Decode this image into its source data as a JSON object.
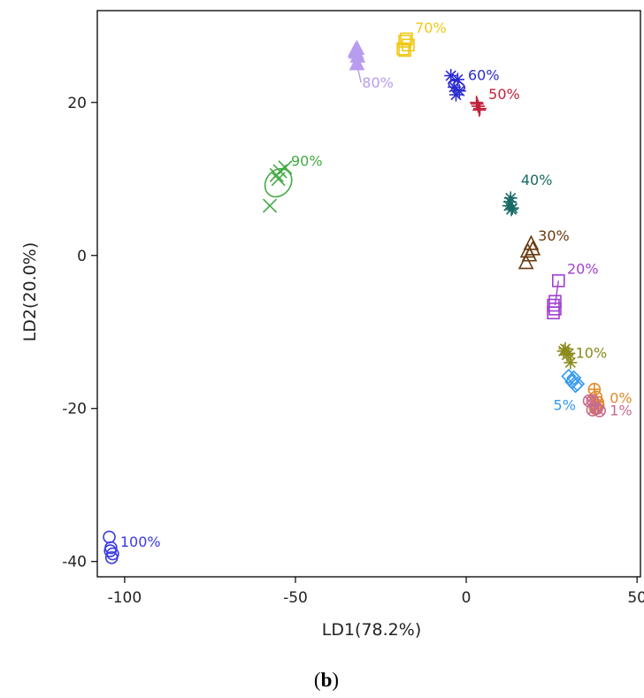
{
  "chart_data": {
    "type": "scatter",
    "panel_label": {
      "open": "(",
      "letter": "b",
      "close": ")"
    },
    "xlabel": "LD1(78.2%)",
    "ylabel": "LD2(20.0%)",
    "xlim": [
      -108,
      51
    ],
    "ylim": [
      -42,
      32
    ],
    "xticks": [
      {
        "value": -100,
        "label": "-100"
      },
      {
        "value": -50,
        "label": "-50"
      },
      {
        "value": 0,
        "label": "0"
      },
      {
        "value": 50,
        "label": "50"
      }
    ],
    "yticks": [
      {
        "value": -40,
        "label": "-40"
      },
      {
        "value": -20,
        "label": "-20"
      },
      {
        "value": 0,
        "label": "0"
      },
      {
        "value": 20,
        "label": "20"
      }
    ],
    "grid": false,
    "series": [
      {
        "name": "0%",
        "marker": "circle-plus",
        "color": "#e08a2a",
        "points": [
          [
            37.5,
            -17.5
          ],
          [
            38,
            -18.5
          ],
          [
            38.5,
            -19.2
          ],
          [
            37.8,
            -20
          ],
          [
            38.6,
            -19.6
          ]
        ],
        "label_at": [
          42,
          -18.7
        ]
      },
      {
        "name": "1%",
        "marker": "circle-cross",
        "color": "#c96a8e",
        "points": [
          [
            36,
            -19
          ],
          [
            37,
            -20.2
          ],
          [
            38.2,
            -20
          ],
          [
            37,
            -19
          ],
          [
            39,
            -20.3
          ]
        ],
        "label_at": [
          42,
          -20.3
        ]
      },
      {
        "name": "5%",
        "marker": "diamond",
        "color": "#3399ee",
        "points": [
          [
            30,
            -15.8
          ],
          [
            31,
            -16.5
          ],
          [
            32,
            -17
          ],
          [
            31.5,
            -16
          ],
          [
            32.5,
            -16.8
          ]
        ],
        "label_at": [
          25.5,
          -19.6
        ]
      },
      {
        "name": "10%",
        "marker": "star",
        "color": "#8a8a1a",
        "points": [
          [
            28.5,
            -12.5
          ],
          [
            29.5,
            -13
          ],
          [
            30,
            -12.8
          ],
          [
            30.5,
            -14
          ],
          [
            29,
            -12.2
          ]
        ],
        "label_at": [
          32,
          -12.8
        ]
      },
      {
        "name": "20%",
        "marker": "square",
        "color": "#a040d0",
        "points": [
          [
            27,
            -3.3
          ],
          [
            25.5,
            -6.5
          ],
          [
            26,
            -7
          ],
          [
            25.5,
            -7.5
          ],
          [
            26,
            -6
          ]
        ],
        "label_at": [
          29.5,
          -1.8
        ]
      },
      {
        "name": "30%",
        "marker": "triangle",
        "color": "#6b3a10",
        "points": [
          [
            17.5,
            -1
          ],
          [
            18,
            0.5
          ],
          [
            19,
            1.5
          ],
          [
            18.5,
            0
          ],
          [
            19.5,
            0.8
          ]
        ],
        "label_at": [
          21,
          2.5
        ]
      },
      {
        "name": "40%",
        "marker": "star",
        "color": "#1a6a64",
        "points": [
          [
            13,
            7.5
          ],
          [
            12.5,
            6.5
          ],
          [
            13.5,
            6.2
          ],
          [
            12.8,
            7
          ],
          [
            13.2,
            6
          ]
        ],
        "label_at": [
          16,
          9.8
        ]
      },
      {
        "name": "50%",
        "marker": "plus",
        "color": "#c0223a",
        "points": [
          [
            3,
            20
          ],
          [
            3.5,
            19.5
          ],
          [
            3.8,
            19
          ],
          [
            3.2,
            19.8
          ],
          [
            4,
            19.2
          ]
        ],
        "label_at": [
          6.5,
          21
        ]
      },
      {
        "name": "60%",
        "marker": "star",
        "color": "#2a2ad0",
        "points": [
          [
            -4.5,
            23.5
          ],
          [
            -2.5,
            23
          ],
          [
            -3.5,
            22
          ],
          [
            -2,
            21.5
          ],
          [
            -3,
            21
          ]
        ],
        "label_at": [
          0.5,
          23.5
        ]
      },
      {
        "name": "70%",
        "marker": "square",
        "color": "#f0c814",
        "points": [
          [
            -18,
            28
          ],
          [
            -17,
            27.5
          ],
          [
            -18.5,
            27
          ],
          [
            -17.5,
            28.3
          ],
          [
            -18,
            26.8
          ]
        ],
        "label_at": [
          -15,
          29.7
        ]
      },
      {
        "name": "80%",
        "marker": "triangle-filled",
        "color": "#b89cf0",
        "points": [
          [
            -32,
            27
          ],
          [
            -32.2,
            26.5
          ],
          [
            -31.8,
            26
          ],
          [
            -32.5,
            26.7
          ],
          [
            -32,
            25
          ]
        ],
        "label_at": [
          -30.5,
          22.5
        ]
      },
      {
        "name": "90%",
        "marker": "cross",
        "color": "#44aa44",
        "points": [
          [
            -57.5,
            6.5
          ],
          [
            -55.5,
            10.5
          ],
          [
            -54.5,
            11
          ],
          [
            -53,
            11.5
          ],
          [
            -55,
            10
          ]
        ],
        "label_at": [
          -51.3,
          12.3
        ]
      },
      {
        "name": "100%",
        "marker": "circle",
        "color": "#3a3ae0",
        "points": [
          [
            -104.5,
            -36.8
          ],
          [
            -104,
            -38.2
          ],
          [
            -103.5,
            -39
          ],
          [
            -103.8,
            -39.5
          ],
          [
            -104.2,
            -38.6
          ]
        ],
        "label_at": [
          -101.3,
          -37.5
        ]
      }
    ],
    "ellipses": [
      {
        "series": "60%",
        "cx": -2.8,
        "cy": 22.2,
        "rx": 1.3,
        "ry": 1.1,
        "angle": -70
      },
      {
        "series": "90%",
        "cx": -55,
        "cy": 9.5,
        "rx": 4.4,
        "ry": 1.6,
        "angle": -52
      }
    ],
    "connector_lines": [
      {
        "series": "20%",
        "from": [
          27,
          -3.3
        ],
        "to": [
          26,
          -6.5
        ]
      },
      {
        "series": "80%",
        "from": [
          -32,
          25
        ],
        "to": [
          -30.8,
          22.6
        ]
      },
      {
        "series": "10%",
        "from": [
          30.2,
          -12.8
        ],
        "to": [
          31.8,
          -12.8
        ]
      }
    ]
  }
}
